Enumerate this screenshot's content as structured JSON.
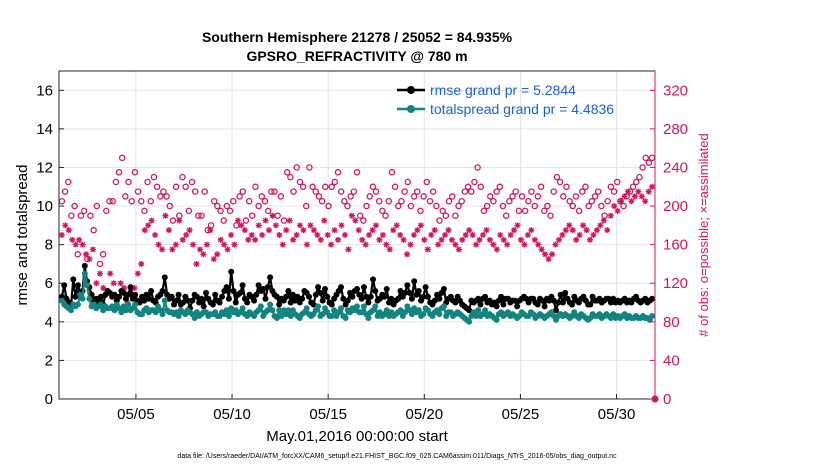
{
  "chart_data": {
    "type": "line",
    "title": [
      "Southern Hemisphere 21278 / 25052 = 84.935%",
      "GPSRO_REFRACTIVITY @ 780 m"
    ],
    "xlabel": "May.01,2016 00:00:00 start",
    "ylabel": "rmse and totalspread",
    "ylabel_right": "# of obs: o=possible; ×=assimilated",
    "footer": "data file: /Users/raeder/DAI/ATM_forcXX/CAM6_setup/f.e21.FHIST_BGC.f09_025.CAM6assim.011/Diags_NTrS_2016-05/obs_diag_output.nc",
    "xlim": [
      1.0,
      32.0
    ],
    "ylim": [
      0,
      17
    ],
    "ylim_right": [
      0,
      340
    ],
    "xticks": [
      5,
      10,
      15,
      20,
      25,
      30
    ],
    "xtick_labels": [
      "05/05",
      "05/10",
      "05/15",
      "05/20",
      "05/25",
      "05/30"
    ],
    "yticks": [
      0,
      2,
      4,
      6,
      8,
      10,
      12,
      14,
      16
    ],
    "yticks_right": [
      0,
      40,
      80,
      120,
      160,
      200,
      240,
      280,
      320
    ],
    "legend_location": "top-right",
    "series": [
      {
        "name": "rmse grand pr = 5.2844",
        "color": "#000000",
        "values": [
          5.3,
          5.9,
          5.2,
          5.0,
          4.8,
          6.2,
          5.3,
          5.9,
          5.5,
          5.6,
          6.9,
          6.1,
          5.8,
          5.4,
          5.1,
          5.2,
          5.0,
          5.3,
          4.9,
          5.4,
          5.6,
          5.5,
          5.3,
          5.4,
          5.1,
          5.3,
          5.6,
          5.5,
          5.2,
          5.4,
          5.8,
          5.2,
          5.4,
          5.1,
          5.0,
          5.3,
          5.1,
          5.4,
          5.2,
          5.6,
          5.1,
          5.0,
          5.3,
          5.4,
          5.6,
          6.3,
          5.4,
          5.2,
          5.3,
          4.9,
          5.1,
          5.4,
          4.9,
          5.0,
          5.3,
          5.1,
          4.7,
          5.1,
          5.4,
          5.3,
          5.0,
          5.2,
          4.8,
          5.5,
          5.2,
          5.0,
          4.9,
          5.4,
          5.1,
          5.0,
          5.3,
          5.6,
          5.8,
          5.2,
          6.6,
          5.6,
          5.0,
          5.4,
          5.5,
          5.9,
          5.2,
          5.0,
          5.4,
          5.3,
          5.1,
          5.4,
          5.9,
          5.6,
          5.7,
          5.2,
          5.8,
          6.3,
          5.6,
          5.4,
          5.3,
          4.9,
          5.2,
          5.1,
          5.3,
          5.6,
          5.0,
          5.4,
          5.1,
          5.3,
          5.0,
          5.2,
          5.6,
          5.5,
          5.3,
          5.0,
          4.9,
          5.4,
          5.8,
          5.5,
          5.1,
          5.7,
          5.3,
          5.0,
          4.9,
          5.2,
          5.4,
          5.6,
          5.8,
          5.2,
          4.9,
          5.1,
          5.5,
          5.3,
          5.6,
          5.7,
          5.4,
          5.2,
          5.8,
          5.3,
          5.0,
          5.3,
          6.2,
          5.6,
          5.1,
          5.2,
          5.4,
          5.3,
          5.7,
          5.0,
          5.2,
          4.9,
          5.1,
          5.2,
          5.6,
          5.3,
          5.5,
          5.9,
          5.5,
          5.2,
          6.1,
          5.4,
          5.6,
          5.1,
          5.3,
          5.8,
          5.3,
          5.0,
          4.9,
          5.1,
          5.4,
          5.2,
          5.5,
          5.7,
          5.0,
          5.2,
          5.3,
          5.1,
          5.0,
          5.3,
          5.1,
          4.9,
          4.8,
          4.7,
          4.6,
          5.1,
          5.0,
          5.1,
          5.2,
          4.9,
          5.2,
          5.3,
          5.0,
          5.1,
          4.9,
          5.0,
          4.8,
          5.1,
          5.3,
          4.9,
          5.2,
          5.2,
          5.0,
          5.1,
          5.1,
          4.8,
          5.1,
          5.2,
          5.3,
          5.2,
          5.0,
          5.2,
          5.2,
          5.0,
          4.9,
          5.2,
          5.1,
          4.8,
          5.2,
          5.1,
          5.3,
          5.1,
          4.6,
          5.0,
          5.4,
          5.0,
          5.5,
          5.2,
          5.0,
          4.9,
          5.3,
          5.1,
          5.0,
          5.2,
          5.3,
          5.1,
          4.9,
          4.9,
          5.3,
          5.1,
          5.1,
          5.2,
          5.0,
          5.1,
          5.2,
          5.2,
          5.0,
          5.2,
          5.0,
          5.1,
          5.0,
          5.1,
          5.2,
          5.0,
          5.1,
          5.0,
          5.2,
          5.3,
          5.1,
          5.0,
          5.1,
          5.2,
          5.0,
          5.1,
          5.2
        ]
      },
      {
        "name": "totalspread grand pr = 4.4836",
        "color": "#138580",
        "values": [
          5.1,
          4.9,
          4.8,
          4.7,
          4.6,
          4.9,
          4.8,
          4.9,
          5.4,
          5.2,
          6.5,
          5.9,
          5.2,
          4.8,
          4.9,
          4.7,
          4.8,
          4.9,
          4.6,
          4.8,
          4.7,
          4.7,
          4.8,
          4.6,
          4.9,
          4.7,
          4.5,
          4.8,
          4.6,
          4.9,
          4.6,
          4.7,
          4.9,
          4.5,
          4.4,
          4.4,
          4.6,
          4.7,
          4.5,
          4.6,
          4.6,
          4.5,
          4.8,
          4.6,
          4.4,
          5.1,
          4.6,
          4.5,
          4.5,
          4.4,
          4.5,
          4.3,
          4.6,
          4.5,
          4.4,
          4.6,
          4.5,
          4.4,
          4.2,
          4.5,
          4.3,
          4.4,
          4.5,
          4.5,
          4.3,
          4.4,
          4.4,
          4.5,
          4.3,
          4.3,
          4.5,
          4.4,
          4.6,
          4.3,
          4.7,
          4.5,
          4.6,
          4.4,
          4.5,
          4.7,
          4.4,
          4.3,
          4.5,
          4.4,
          4.3,
          4.5,
          4.6,
          4.8,
          4.3,
          4.5,
          4.6,
          4.9,
          4.6,
          4.3,
          4.2,
          4.6,
          4.3,
          4.6,
          4.4,
          4.6,
          4.3,
          4.6,
          4.4,
          4.3,
          4.2,
          4.4,
          4.5,
          4.7,
          4.4,
          4.3,
          4.4,
          4.6,
          4.8,
          4.3,
          4.4,
          4.7,
          4.5,
          4.3,
          4.3,
          4.6,
          4.3,
          4.5,
          4.7,
          4.3,
          4.2,
          4.6,
          4.5,
          4.7,
          4.6,
          4.8,
          4.5,
          4.5,
          4.8,
          4.4,
          4.2,
          4.5,
          4.6,
          4.8,
          4.3,
          4.5,
          4.3,
          4.4,
          4.6,
          4.3,
          4.5,
          4.3,
          4.4,
          4.5,
          4.6,
          4.3,
          4.5,
          4.8,
          4.6,
          4.4,
          4.7,
          4.5,
          4.6,
          4.3,
          4.4,
          4.7,
          4.6,
          4.4,
          4.3,
          4.5,
          4.6,
          4.4,
          4.7,
          4.8,
          4.3,
          4.5,
          4.5,
          4.3,
          4.4,
          4.5,
          4.4,
          4.3,
          4.2,
          4.1,
          4.0,
          4.3,
          4.5,
          4.3,
          4.6,
          4.3,
          4.4,
          4.6,
          4.3,
          4.4,
          4.3,
          4.2,
          4.1,
          4.4,
          4.5,
          4.3,
          4.4,
          4.5,
          4.3,
          4.4,
          4.3,
          4.2,
          4.3,
          4.5,
          4.4,
          4.3,
          4.3,
          4.5,
          4.4,
          4.2,
          4.3,
          4.4,
          4.3,
          4.2,
          4.3,
          4.4,
          4.5,
          4.3,
          4.1,
          4.3,
          4.4,
          4.3,
          4.4,
          4.3,
          4.2,
          4.3,
          4.5,
          4.3,
          4.2,
          4.4,
          4.3,
          4.2,
          4.1,
          4.2,
          4.4,
          4.3,
          4.3,
          4.4,
          4.2,
          4.3,
          4.4,
          4.3,
          4.2,
          4.4,
          4.2,
          4.3,
          4.2,
          4.3,
          4.4,
          4.2,
          4.3,
          4.2,
          4.2,
          4.3,
          4.2,
          4.2,
          4.3,
          4.2,
          4.2,
          4.1,
          4.3
        ]
      }
    ],
    "obs_possible": [
      205,
      215,
      225,
      190,
      200,
      150,
      190,
      195,
      145,
      190,
      175,
      200,
      140,
      150,
      195,
      205,
      205,
      225,
      235,
      250,
      210,
      225,
      205,
      235,
      215,
      205,
      195,
      225,
      205,
      230,
      220,
      210,
      215,
      210,
      200,
      185,
      220,
      190,
      230,
      220,
      195,
      225,
      215,
      190,
      190,
      215,
      175,
      180,
      205,
      200,
      195,
      185,
      200,
      195,
      205,
      180,
      210,
      215,
      185,
      205,
      190,
      220,
      200,
      210,
      205,
      195,
      215,
      215,
      190,
      210,
      185,
      235,
      230,
      215,
      240,
      225,
      220,
      200,
      240,
      220,
      215,
      210,
      205,
      220,
      200,
      220,
      225,
      235,
      215,
      205,
      200,
      210,
      215,
      235,
      190,
      185,
      200,
      210,
      220,
      215,
      205,
      195,
      190,
      205,
      235,
      220,
      200,
      205,
      215,
      225,
      200,
      210,
      215,
      195,
      210,
      225,
      205,
      215,
      200,
      185,
      195,
      190,
      205,
      210,
      190,
      200,
      205,
      215,
      220,
      215,
      225,
      240,
      220,
      195,
      200,
      210,
      205,
      215,
      220,
      200,
      190,
      205,
      210,
      215,
      195,
      210,
      195,
      205,
      215,
      200,
      210,
      220,
      195,
      200,
      190,
      215,
      230,
      225,
      210,
      220,
      205,
      200,
      210,
      195,
      215,
      220,
      200,
      205,
      210,
      215,
      200,
      190,
      205,
      220,
      215,
      225,
      205,
      200,
      210,
      215,
      220,
      225,
      230,
      240,
      250,
      245,
      250
    ],
    "obs_assimilated": [
      170,
      180,
      175,
      165,
      160,
      165,
      160,
      150,
      145,
      155,
      120,
      130,
      115,
      110,
      130,
      120,
      95,
      120,
      115,
      100,
      110,
      115,
      130,
      140,
      175,
      180,
      185,
      170,
      160,
      155,
      190,
      175,
      155,
      160,
      185,
      165,
      170,
      175,
      160,
      140,
      155,
      150,
      160,
      175,
      145,
      150,
      165,
      160,
      155,
      170,
      160,
      185,
      180,
      175,
      165,
      170,
      165,
      180,
      170,
      185,
      175,
      190,
      180,
      170,
      160,
      175,
      185,
      165,
      170,
      180,
      175,
      160,
      180,
      175,
      170,
      165,
      185,
      170,
      160,
      175,
      165,
      180,
      170,
      155,
      190,
      185,
      175,
      165,
      160,
      170,
      175,
      180,
      165,
      170,
      160,
      155,
      175,
      180,
      170,
      165,
      150,
      160,
      170,
      175,
      180,
      165,
      155,
      170,
      175,
      160,
      165,
      170,
      175,
      165,
      160,
      155,
      165,
      170,
      175,
      170,
      160,
      165,
      170,
      175,
      165,
      160,
      155,
      170,
      165,
      160,
      170,
      175,
      180,
      165,
      160,
      170,
      175,
      165,
      160,
      155,
      150,
      145,
      150,
      160,
      165,
      170,
      175,
      180,
      175,
      165,
      170,
      180,
      175,
      165,
      170,
      175,
      180,
      185,
      175,
      190,
      200,
      195,
      205,
      210,
      215,
      205,
      210,
      215,
      210,
      205,
      215,
      220
    ]
  }
}
